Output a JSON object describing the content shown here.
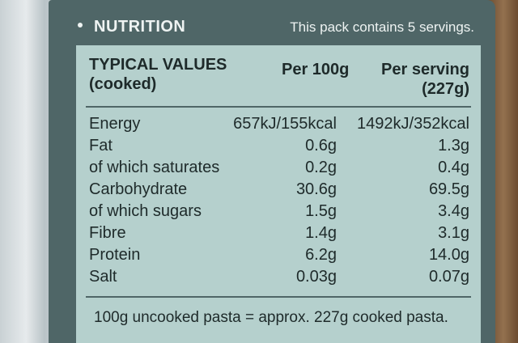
{
  "header": {
    "title": "NUTRITION",
    "servings_note": "This pack contains 5 servings."
  },
  "table": {
    "col_typical_line1": "TYPICAL VALUES",
    "col_typical_line2": "(cooked)",
    "col_per100": "Per 100g",
    "col_perserving_line1": "Per serving",
    "col_perserving_line2": "(227g)",
    "rows": [
      {
        "name": "Energy",
        "per100": "657kJ/155kcal",
        "perserving": "1492kJ/352kcal"
      },
      {
        "name": "Fat",
        "per100": "0.6g",
        "perserving": "1.3g"
      },
      {
        "name": "of which saturates",
        "per100": "0.2g",
        "perserving": "0.4g"
      },
      {
        "name": "Carbohydrate",
        "per100": "30.6g",
        "perserving": "69.5g"
      },
      {
        "name": "of which sugars",
        "per100": "1.5g",
        "perserving": "3.4g"
      },
      {
        "name": "Fibre",
        "per100": "1.4g",
        "perserving": "3.1g"
      },
      {
        "name": "Protein",
        "per100": "6.2g",
        "perserving": "14.0g"
      },
      {
        "name": "Salt",
        "per100": "0.03g",
        "perserving": "0.07g"
      }
    ]
  },
  "footnote": "100g uncooked pasta = approx. 227g cooked pasta.",
  "colors": {
    "panel": "#b5d0cd",
    "pack": "#4f6667",
    "text": "#1e2a2a"
  }
}
